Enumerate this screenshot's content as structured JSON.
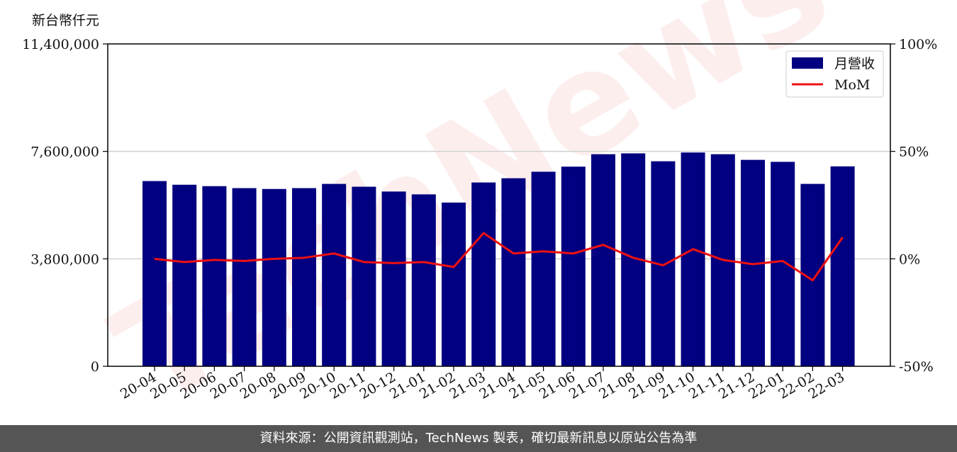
{
  "unit_label": "新台幣仟元",
  "footer_text": "資料來源：公開資訊觀測站，TechNews 製表，確切最新訊息以原站公告為準",
  "watermark": "TechNews",
  "colors": {
    "bar": "#000080",
    "line": "#ee1111",
    "grid": "#d0d0d0",
    "footer_bg": "#555555"
  },
  "chart_data": {
    "type": "bar",
    "categories": [
      "20-04",
      "20-05",
      "20-06",
      "20-07",
      "20-08",
      "20-09",
      "20-10",
      "20-11",
      "20-12",
      "21-01",
      "21-02",
      "21-03",
      "21-04",
      "21-05",
      "21-06",
      "21-07",
      "21-08",
      "21-09",
      "21-10",
      "21-11",
      "21-12",
      "22-01",
      "22-02",
      "22-03"
    ],
    "series": [
      {
        "name": "月營收",
        "kind": "bar",
        "axis": "left",
        "values": [
          6550000,
          6420000,
          6370000,
          6300000,
          6270000,
          6300000,
          6450000,
          6350000,
          6180000,
          6080000,
          5790000,
          6500000,
          6650000,
          6880000,
          7060000,
          7500000,
          7530000,
          7250000,
          7560000,
          7500000,
          7300000,
          7230000,
          6450000,
          7070000
        ]
      },
      {
        "name": "MoM",
        "kind": "line",
        "axis": "right",
        "values": [
          0,
          -1.5,
          -0.5,
          -1.0,
          0,
          0.5,
          2.5,
          -1.5,
          -2.0,
          -1.5,
          -3.8,
          12.0,
          2.5,
          3.5,
          2.5,
          6.5,
          0.5,
          -3.0,
          4.5,
          -0.5,
          -2.5,
          -1.0,
          -10.0,
          10.0
        ]
      }
    ],
    "ylim_left": [
      0,
      11400000
    ],
    "yticks_left": [
      "0",
      "3,800,000",
      "7,600,000",
      "11,400,000"
    ],
    "yticks_left_values": [
      0,
      3800000,
      7600000,
      11400000
    ],
    "ylim_right": [
      -50,
      100
    ],
    "yticks_right": [
      "-50%",
      "0%",
      "50%",
      "100%"
    ],
    "yticks_right_values": [
      -50,
      0,
      50,
      100
    ],
    "grid": "horizontal",
    "legend_position": "top-right"
  }
}
